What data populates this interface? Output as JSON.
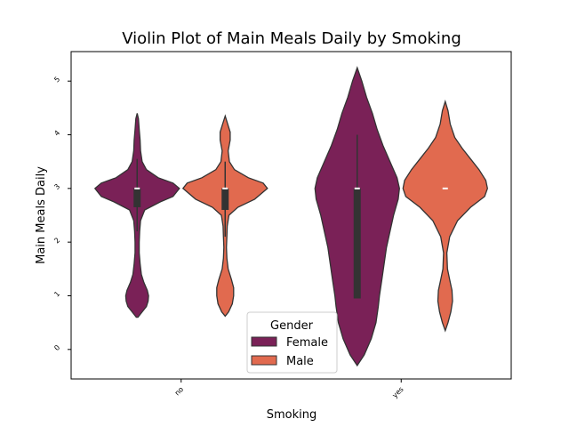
{
  "chart_data": {
    "type": "violin",
    "title": "Violin Plot of Main Meals Daily by Smoking",
    "xlabel": "Smoking",
    "ylabel": "Main Meals Daily",
    "categories": [
      "no",
      "yes"
    ],
    "ylim": [
      -0.55,
      5.55
    ],
    "yticks": [
      0,
      1,
      2,
      3,
      4,
      5
    ],
    "ytick_labels": [
      "0",
      "1",
      "2",
      "3",
      "4",
      "5"
    ],
    "grid": false,
    "legend": {
      "title": "Gender",
      "placement": "lower center",
      "entries": [
        "Female",
        "Male"
      ]
    },
    "series": [
      {
        "name": "Female",
        "color": "#7a2157",
        "violins": [
          {
            "category": "no",
            "min": 0.6,
            "q1": 2.65,
            "median": 3.0,
            "q3": 3.0,
            "whisker_low": 2.2,
            "whisker_high": 3.55,
            "max": 4.4,
            "density": [
              [
                0.6,
                0.02
              ],
              [
                0.7,
                0.12
              ],
              [
                0.8,
                0.22
              ],
              [
                0.9,
                0.26
              ],
              [
                1.0,
                0.27
              ],
              [
                1.1,
                0.24
              ],
              [
                1.25,
                0.16
              ],
              [
                1.4,
                0.1
              ],
              [
                1.6,
                0.07
              ],
              [
                1.8,
                0.05
              ],
              [
                2.0,
                0.05
              ],
              [
                2.2,
                0.06
              ],
              [
                2.4,
                0.08
              ],
              [
                2.6,
                0.18
              ],
              [
                2.75,
                0.55
              ],
              [
                2.85,
                0.85
              ],
              [
                3.0,
                1.0
              ],
              [
                3.1,
                0.85
              ],
              [
                3.2,
                0.5
              ],
              [
                3.35,
                0.22
              ],
              [
                3.5,
                0.12
              ],
              [
                3.7,
                0.08
              ],
              [
                3.9,
                0.07
              ],
              [
                4.1,
                0.05
              ],
              [
                4.3,
                0.03
              ],
              [
                4.4,
                0.0
              ]
            ]
          },
          {
            "category": "yes",
            "min": -0.3,
            "q1": 0.95,
            "median": 3.0,
            "q3": 3.0,
            "whisker_low": 0.95,
            "whisker_high": 4.0,
            "max": 5.25,
            "density": [
              [
                -0.3,
                0.0
              ],
              [
                -0.1,
                0.06
              ],
              [
                0.2,
                0.12
              ],
              [
                0.5,
                0.16
              ],
              [
                0.8,
                0.18
              ],
              [
                1.0,
                0.19
              ],
              [
                1.3,
                0.21
              ],
              [
                1.6,
                0.23
              ],
              [
                1.9,
                0.25
              ],
              [
                2.2,
                0.28
              ],
              [
                2.5,
                0.31
              ],
              [
                2.8,
                0.35
              ],
              [
                3.0,
                0.36
              ],
              [
                3.2,
                0.34
              ],
              [
                3.5,
                0.28
              ],
              [
                3.8,
                0.22
              ],
              [
                4.1,
                0.17
              ],
              [
                4.4,
                0.13
              ],
              [
                4.7,
                0.08
              ],
              [
                5.0,
                0.04
              ],
              [
                5.25,
                0.0
              ]
            ]
          }
        ]
      },
      {
        "name": "Male",
        "color": "#e16a4f",
        "violins": [
          {
            "category": "no",
            "min": 0.62,
            "q1": 2.6,
            "median": 3.0,
            "q3": 3.0,
            "whisker_low": 2.1,
            "whisker_high": 3.5,
            "max": 4.35,
            "density": [
              [
                0.62,
                0.0
              ],
              [
                0.7,
                0.08
              ],
              [
                0.85,
                0.17
              ],
              [
                1.0,
                0.2
              ],
              [
                1.15,
                0.2
              ],
              [
                1.3,
                0.15
              ],
              [
                1.5,
                0.07
              ],
              [
                1.7,
                0.04
              ],
              [
                1.9,
                0.03
              ],
              [
                2.1,
                0.04
              ],
              [
                2.3,
                0.05
              ],
              [
                2.5,
                0.09
              ],
              [
                2.65,
                0.3
              ],
              [
                2.8,
                0.7
              ],
              [
                3.0,
                1.0
              ],
              [
                3.1,
                0.9
              ],
              [
                3.2,
                0.55
              ],
              [
                3.35,
                0.22
              ],
              [
                3.5,
                0.1
              ],
              [
                3.7,
                0.07
              ],
              [
                3.9,
                0.12
              ],
              [
                4.05,
                0.12
              ],
              [
                4.2,
                0.06
              ],
              [
                4.35,
                0.0
              ]
            ]
          },
          {
            "category": "yes",
            "min": 0.35,
            "q1": 3.0,
            "median": 3.0,
            "q3": 3.0,
            "whisker_low": 3.0,
            "whisker_high": 3.0,
            "max": 4.62,
            "density": [
              [
                0.35,
                0.0
              ],
              [
                0.5,
                0.05
              ],
              [
                0.7,
                0.1
              ],
              [
                0.9,
                0.13
              ],
              [
                1.1,
                0.12
              ],
              [
                1.3,
                0.08
              ],
              [
                1.5,
                0.04
              ],
              [
                1.8,
                0.03
              ],
              [
                2.1,
                0.08
              ],
              [
                2.4,
                0.22
              ],
              [
                2.65,
                0.45
              ],
              [
                2.85,
                0.7
              ],
              [
                3.0,
                0.75
              ],
              [
                3.15,
                0.72
              ],
              [
                3.35,
                0.6
              ],
              [
                3.55,
                0.45
              ],
              [
                3.75,
                0.3
              ],
              [
                3.95,
                0.17
              ],
              [
                4.2,
                0.09
              ],
              [
                4.45,
                0.05
              ],
              [
                4.62,
                0.0
              ]
            ]
          }
        ]
      }
    ]
  }
}
